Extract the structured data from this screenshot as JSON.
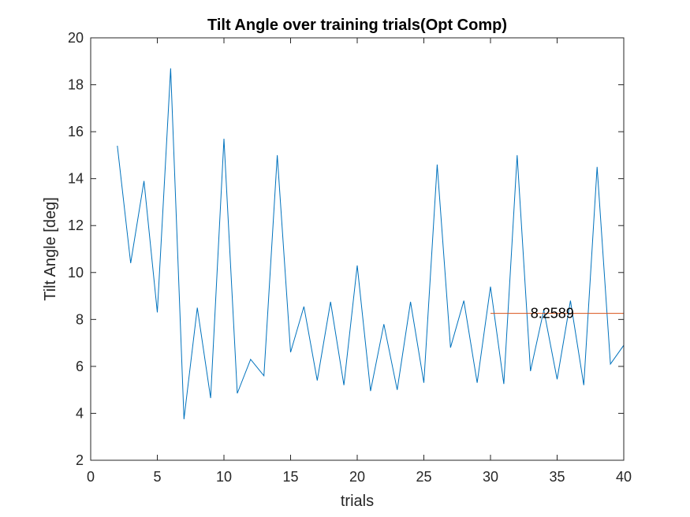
{
  "chart_data": {
    "type": "line",
    "title": "Tilt Angle over training trials(Opt Comp)",
    "xlabel": "trials",
    "ylabel": "Tilt Angle [deg]",
    "xlim": [
      0,
      40
    ],
    "ylim": [
      2,
      20
    ],
    "xticks": [
      0,
      5,
      10,
      15,
      20,
      25,
      30,
      35,
      40
    ],
    "yticks": [
      2,
      4,
      6,
      8,
      10,
      12,
      14,
      16,
      18,
      20
    ],
    "grid": false,
    "series": [
      {
        "color": "#0072BD",
        "x": [
          2,
          3,
          4,
          5,
          6,
          7,
          8,
          9,
          10,
          11,
          12,
          13,
          14,
          15,
          16,
          17,
          18,
          19,
          20,
          21,
          22,
          23,
          24,
          25,
          26,
          27,
          28,
          29,
          30,
          31,
          32,
          33,
          34,
          35,
          36,
          37,
          38,
          39,
          40
        ],
        "y": [
          15.4,
          10.4,
          13.9,
          8.3,
          18.7,
          3.75,
          8.5,
          4.65,
          15.7,
          4.85,
          6.3,
          5.6,
          15.0,
          6.6,
          8.55,
          5.4,
          8.75,
          5.2,
          10.3,
          4.95,
          7.8,
          5.0,
          8.75,
          5.3,
          14.6,
          6.8,
          8.8,
          5.3,
          9.4,
          5.25,
          15.0,
          5.8,
          8.4,
          5.45,
          8.8,
          5.2,
          14.5,
          6.1,
          6.9
        ]
      },
      {
        "color": "#D95319",
        "x": [
          30,
          40
        ],
        "y": [
          8.2589,
          8.2589
        ]
      }
    ],
    "annotations": [
      {
        "text": "8.2589",
        "x": 33,
        "y": 8.2589
      }
    ]
  }
}
